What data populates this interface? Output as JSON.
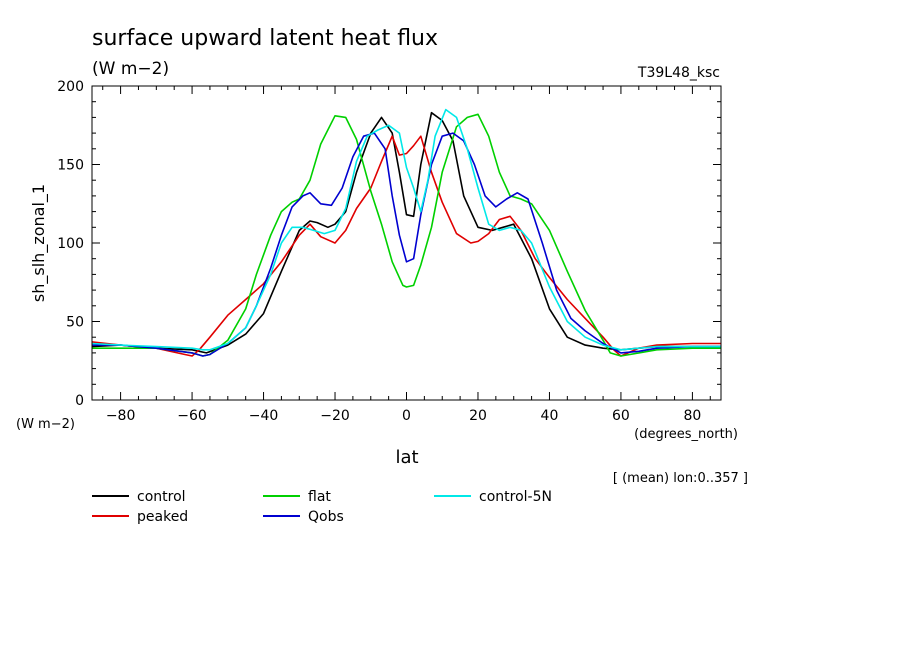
{
  "chart_data": {
    "type": "line",
    "title": "surface upward latent heat flux",
    "subtitle": "(W m−2)",
    "right_label": "T39L48_ksc",
    "ylabel": "sh_slh_zonal_1",
    "y_units": "(W m−2)",
    "xlabel": "lat",
    "x_units": "(degrees_north)",
    "note": "[ (mean) lon:0..357 ]",
    "xlim": [
      -88,
      88
    ],
    "ylim": [
      0,
      200
    ],
    "x_ticks": [
      -80,
      -60,
      -40,
      -20,
      0,
      20,
      40,
      60,
      80
    ],
    "x_tick_labels": [
      "−80",
      "−60",
      "−40",
      "−20",
      "0",
      "20",
      "40",
      "60",
      "80"
    ],
    "y_ticks": [
      0,
      50,
      100,
      150,
      200
    ],
    "y_tick_labels": [
      "0",
      "50",
      "100",
      "150",
      "200"
    ],
    "grid": false,
    "legend_position": "bottom",
    "series": [
      {
        "name": "control",
        "color": "#000000",
        "x": [
          -88,
          -80,
          -70,
          -60,
          -56,
          -50,
          -45,
          -40,
          -35,
          -30,
          -27,
          -25,
          -22,
          -20,
          -17,
          -14,
          -10,
          -7,
          -4,
          -2,
          0,
          2,
          4,
          7,
          10,
          13,
          16,
          20,
          24,
          27,
          30,
          35,
          40,
          45,
          50,
          55,
          60,
          65,
          70,
          80,
          88
        ],
        "y": [
          34,
          35,
          33,
          32,
          30,
          35,
          42,
          55,
          82,
          108,
          114,
          113,
          110,
          112,
          120,
          145,
          170,
          180,
          170,
          145,
          118,
          117,
          150,
          183,
          178,
          165,
          130,
          110,
          108,
          110,
          112,
          90,
          58,
          40,
          35,
          33,
          32,
          33,
          34,
          34,
          34
        ]
      },
      {
        "name": "peaked",
        "color": "#e00000",
        "x": [
          -88,
          -80,
          -70,
          -62,
          -60,
          -58,
          -55,
          -50,
          -45,
          -40,
          -35,
          -30,
          -27,
          -24,
          -20,
          -17,
          -14,
          -10,
          -7,
          -4,
          -2,
          0,
          2,
          4,
          7,
          10,
          14,
          18,
          20,
          23,
          26,
          29,
          32,
          36,
          40,
          45,
          50,
          55,
          58,
          60,
          62,
          65,
          70,
          80,
          88
        ],
        "y": [
          37,
          35,
          33,
          29,
          28,
          32,
          40,
          54,
          64,
          74,
          88,
          105,
          112,
          104,
          100,
          108,
          122,
          135,
          152,
          168,
          156,
          157,
          162,
          168,
          145,
          126,
          106,
          100,
          101,
          106,
          115,
          117,
          108,
          90,
          78,
          64,
          52,
          40,
          32,
          28,
          30,
          33,
          35,
          36,
          36
        ]
      },
      {
        "name": "flat",
        "color": "#00d000",
        "x": [
          -88,
          -80,
          -70,
          -60,
          -57,
          -55,
          -50,
          -45,
          -42,
          -38,
          -35,
          -32,
          -30,
          -27,
          -24,
          -20,
          -17,
          -14,
          -10,
          -7,
          -4,
          -1,
          0,
          2,
          4,
          7,
          10,
          14,
          17,
          20,
          23,
          26,
          29,
          32,
          35,
          40,
          45,
          50,
          55,
          57,
          60,
          65,
          70,
          80,
          88
        ],
        "y": [
          33,
          33,
          33,
          30,
          28,
          29,
          38,
          58,
          80,
          105,
          120,
          126,
          128,
          140,
          163,
          181,
          180,
          166,
          133,
          112,
          88,
          73,
          72,
          73,
          86,
          110,
          145,
          174,
          180,
          182,
          168,
          145,
          130,
          128,
          125,
          108,
          82,
          57,
          38,
          30,
          28,
          30,
          32,
          33,
          33
        ]
      },
      {
        "name": "Qobs",
        "color": "#0000d0",
        "x": [
          -88,
          -80,
          -70,
          -60,
          -57,
          -55,
          -50,
          -45,
          -42,
          -38,
          -35,
          -32,
          -29,
          -27,
          -24,
          -21,
          -18,
          -15,
          -12,
          -9,
          -6,
          -4,
          -2,
          0,
          2,
          4,
          7,
          10,
          13,
          16,
          19,
          22,
          25,
          28,
          31,
          34,
          38,
          42,
          46,
          50,
          55,
          60,
          65,
          70,
          80,
          88
        ],
        "y": [
          35,
          35,
          33,
          30,
          28,
          29,
          36,
          46,
          60,
          84,
          105,
          123,
          130,
          132,
          125,
          124,
          135,
          155,
          168,
          170,
          160,
          130,
          105,
          88,
          90,
          118,
          150,
          168,
          170,
          165,
          150,
          130,
          123,
          128,
          132,
          128,
          100,
          70,
          52,
          44,
          36,
          30,
          31,
          33,
          34,
          34
        ]
      },
      {
        "name": "control-5N",
        "color": "#00e8e8",
        "x": [
          -88,
          -80,
          -70,
          -60,
          -57,
          -55,
          -50,
          -45,
          -42,
          -38,
          -35,
          -32,
          -29,
          -26,
          -23,
          -20,
          -17,
          -14,
          -11,
          -8,
          -5,
          -2,
          0,
          2,
          4,
          6,
          8,
          11,
          14,
          17,
          20,
          23,
          26,
          29,
          32,
          35,
          40,
          45,
          50,
          55,
          60,
          65,
          70,
          80,
          88
        ],
        "y": [
          36,
          35,
          34,
          33,
          32,
          32,
          36,
          46,
          60,
          80,
          100,
          110,
          110,
          108,
          106,
          108,
          122,
          152,
          168,
          172,
          175,
          170,
          148,
          135,
          120,
          140,
          168,
          185,
          180,
          160,
          135,
          112,
          108,
          110,
          108,
          100,
          72,
          50,
          40,
          35,
          32,
          33,
          34,
          34,
          34
        ]
      }
    ]
  }
}
